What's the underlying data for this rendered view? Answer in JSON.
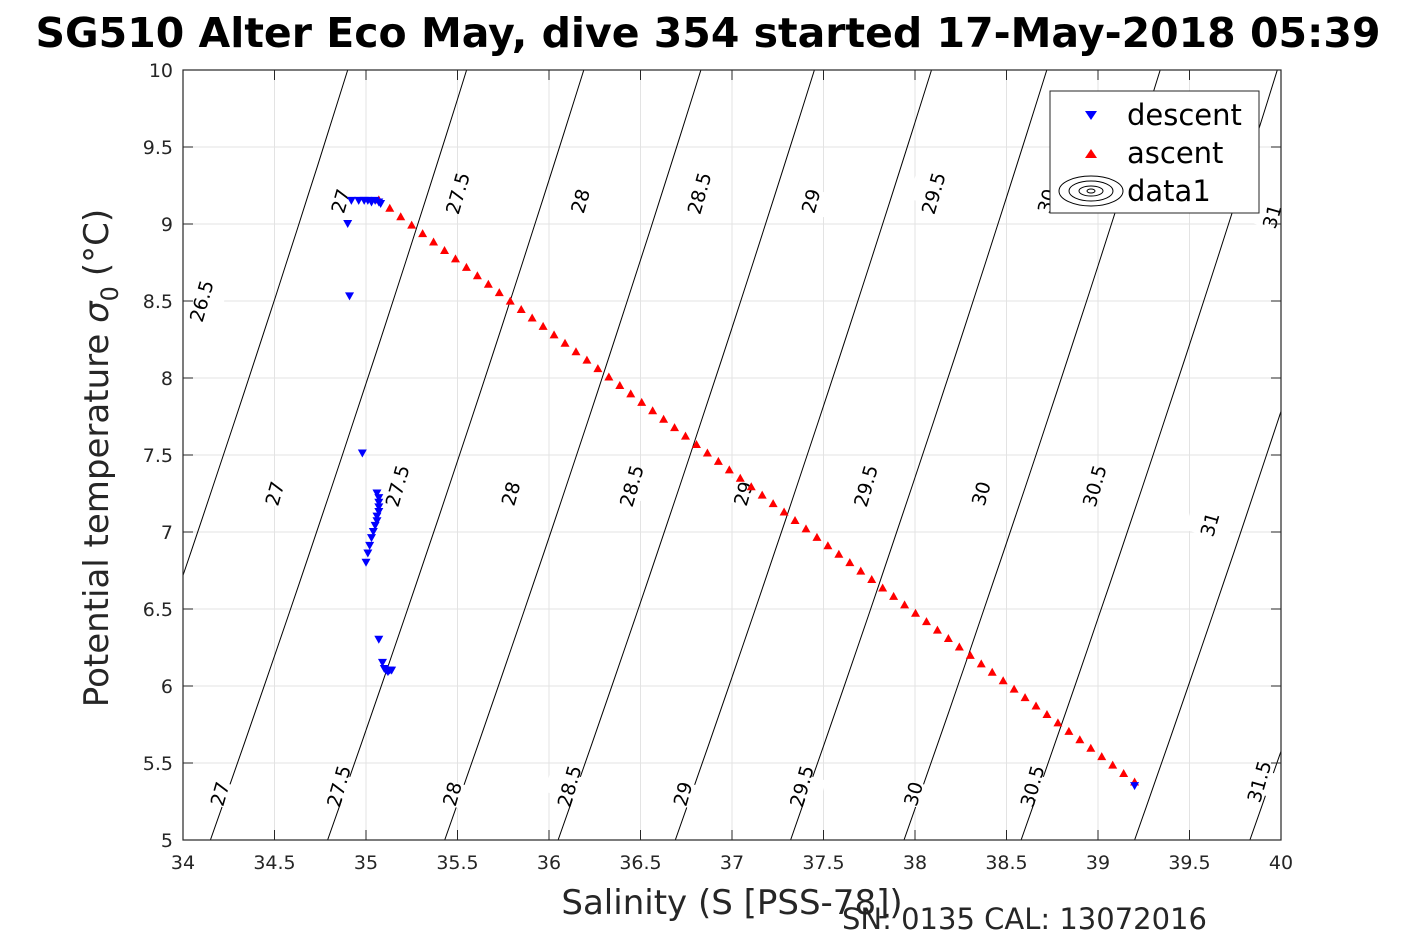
{
  "figure": {
    "title": "SG510 Alter Eco May, dive 354 started 17-May-2018 05:39",
    "footer": "SN: 0135  CAL: 13072016"
  },
  "chart_data": {
    "type": "scatter",
    "xlabel": "Salinity (S [PSS-78])",
    "ylabel_main": "Potential temperature",
    "ylabel_symbol": "σ",
    "ylabel_subscript": "0",
    "ylabel_unit": "(°C)",
    "xlim": [
      34,
      40
    ],
    "ylim": [
      5,
      10
    ],
    "x_ticks": [
      34,
      34.5,
      35,
      35.5,
      36,
      36.5,
      37,
      37.5,
      38,
      38.5,
      39,
      39.5,
      40
    ],
    "y_ticks": [
      5,
      5.5,
      6,
      6.5,
      7,
      7.5,
      8,
      8.5,
      9,
      9.5,
      10
    ],
    "grid": true,
    "legend": {
      "position": "top-right",
      "entries": [
        {
          "name": "descent",
          "marker": "triangle-down",
          "color": "#0000ff"
        },
        {
          "name": "ascent",
          "marker": "triangle-up",
          "color": "#ff0000"
        },
        {
          "name": "data1",
          "marker": "contour",
          "color": "#000000"
        }
      ]
    },
    "series": [
      {
        "name": "descent",
        "marker": "triangle-down",
        "color": "#0000ff",
        "points": [
          [
            34.92,
            9.15
          ],
          [
            34.96,
            9.15
          ],
          [
            34.99,
            9.15
          ],
          [
            35.01,
            9.15
          ],
          [
            35.03,
            9.14
          ],
          [
            35.05,
            9.15
          ],
          [
            35.07,
            9.14
          ],
          [
            35.08,
            9.13
          ],
          [
            34.9,
            9.0
          ],
          [
            34.91,
            8.53
          ],
          [
            34.98,
            7.51
          ],
          [
            35.06,
            7.25
          ],
          [
            35.07,
            7.22
          ],
          [
            35.07,
            7.19
          ],
          [
            35.07,
            7.16
          ],
          [
            35.07,
            7.13
          ],
          [
            35.06,
            7.1
          ],
          [
            35.06,
            7.07
          ],
          [
            35.05,
            7.04
          ],
          [
            35.04,
            7.0
          ],
          [
            35.03,
            6.96
          ],
          [
            35.02,
            6.91
          ],
          [
            35.01,
            6.86
          ],
          [
            35.0,
            6.8
          ],
          [
            35.07,
            6.3
          ],
          [
            35.09,
            6.15
          ],
          [
            35.1,
            6.11
          ],
          [
            35.11,
            6.1
          ],
          [
            35.12,
            6.09
          ],
          [
            35.13,
            6.1
          ],
          [
            35.14,
            6.1
          ],
          [
            39.2,
            5.35
          ]
        ]
      },
      {
        "name": "ascent",
        "marker": "triangle-up",
        "color": "#ff0000",
        "from": [
          35.07,
          9.16
        ],
        "to": [
          39.2,
          5.38
        ],
        "count": 70
      }
    ],
    "contours": {
      "name": "data1",
      "color": "#000000",
      "levels": [
        26.5,
        27,
        27.5,
        28,
        28.5,
        29,
        29.5,
        30,
        30.5,
        31,
        31.5
      ],
      "lines": [
        {
          "level": 26.5,
          "bottom_s": 33.5,
          "top_s": 34.9
        },
        {
          "level": 27,
          "bottom_s": 34.15,
          "top_s": 35.55
        },
        {
          "level": 27.5,
          "bottom_s": 34.79,
          "top_s": 36.19
        },
        {
          "level": 28,
          "bottom_s": 35.43,
          "top_s": 36.83
        },
        {
          "level": 28.5,
          "bottom_s": 36.05,
          "top_s": 37.45
        },
        {
          "level": 29,
          "bottom_s": 36.69,
          "top_s": 38.09
        },
        {
          "level": 29.5,
          "bottom_s": 37.32,
          "top_s": 38.72
        },
        {
          "level": 30,
          "bottom_s": 37.94,
          "top_s": 39.34
        },
        {
          "level": 30.5,
          "bottom_s": 38.58,
          "top_s": 39.98
        },
        {
          "level": 31,
          "bottom_s": 39.2,
          "top_s": 40.6
        },
        {
          "level": 31.5,
          "bottom_s": 39.83,
          "top_s": 41.23
        }
      ],
      "labels": [
        {
          "text": "26.5",
          "s": 34.1,
          "t": 8.5
        },
        {
          "text": "27",
          "s": 34.86,
          "t": 9.15
        },
        {
          "text": "27.5",
          "s": 35.5,
          "t": 9.2
        },
        {
          "text": "28",
          "s": 36.17,
          "t": 9.15
        },
        {
          "text": "28.5",
          "s": 36.82,
          "t": 9.2
        },
        {
          "text": "29",
          "s": 37.43,
          "t": 9.15
        },
        {
          "text": "29.5",
          "s": 38.1,
          "t": 9.2
        },
        {
          "text": "30",
          "s": 38.72,
          "t": 9.15
        },
        {
          "text": "31",
          "s": 39.95,
          "t": 9.05
        },
        {
          "text": "27",
          "s": 34.5,
          "t": 7.25
        },
        {
          "text": "27.5",
          "s": 35.17,
          "t": 7.3
        },
        {
          "text": "28",
          "s": 35.79,
          "t": 7.25
        },
        {
          "text": "28.5",
          "s": 36.45,
          "t": 7.3
        },
        {
          "text": "29",
          "s": 37.06,
          "t": 7.25
        },
        {
          "text": "29.5",
          "s": 37.73,
          "t": 7.3
        },
        {
          "text": "30",
          "s": 38.36,
          "t": 7.25
        },
        {
          "text": "30.5",
          "s": 38.98,
          "t": 7.3
        },
        {
          "text": "31",
          "s": 39.61,
          "t": 7.05
        },
        {
          "text": "27",
          "s": 34.2,
          "t": 5.3
        },
        {
          "text": "27.5",
          "s": 34.85,
          "t": 5.35
        },
        {
          "text": "28",
          "s": 35.47,
          "t": 5.3
        },
        {
          "text": "28.5",
          "s": 36.11,
          "t": 5.35
        },
        {
          "text": "29",
          "s": 36.73,
          "t": 5.3
        },
        {
          "text": "29.5",
          "s": 37.38,
          "t": 5.35
        },
        {
          "text": "30",
          "s": 37.99,
          "t": 5.3
        },
        {
          "text": "30.5",
          "s": 38.64,
          "t": 5.35
        },
        {
          "text": "31.5",
          "s": 39.88,
          "t": 5.38
        }
      ]
    }
  }
}
